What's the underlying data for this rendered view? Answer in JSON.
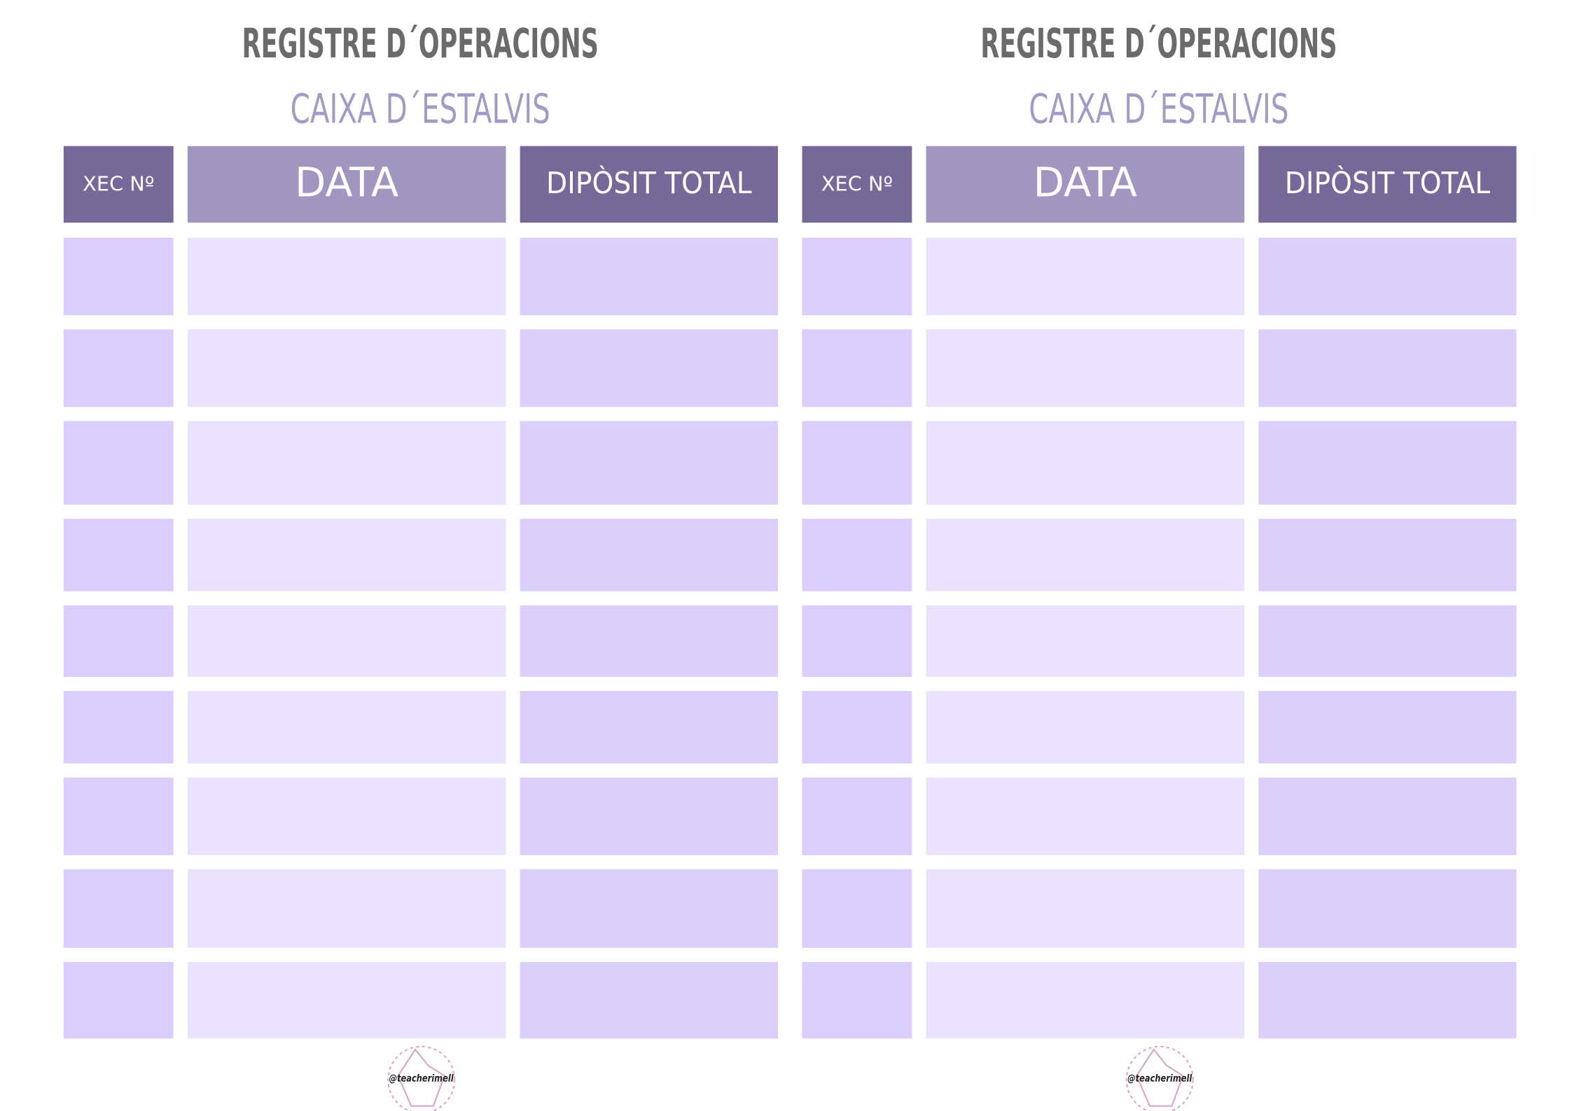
{
  "panels": [
    {
      "title": "REGISTRE D´OPERACIONS",
      "subtitle": "CAIXA D´ESTALVIS",
      "headers": [
        "XEC Nº",
        "DATA",
        "DIPÒSIT TOTAL"
      ],
      "logo": "@teacherimell"
    },
    {
      "title": "REGISTRE D´OPERACIONS",
      "subtitle": "CAIXA D´ESTALVIS",
      "headers": [
        "XEC Nº",
        "DATA",
        "DIPÒSIT TOTAL"
      ],
      "logo": "@teacherimell"
    }
  ]
}
